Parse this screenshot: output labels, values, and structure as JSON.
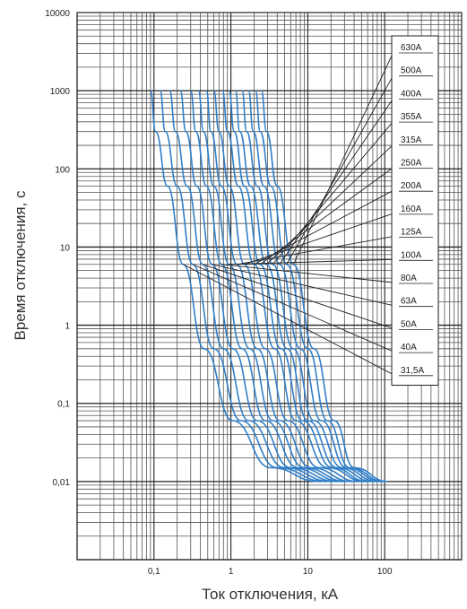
{
  "chart_data": {
    "type": "line",
    "xlabel": "Ток отключения, кА",
    "ylabel": "Время отключения, с",
    "xscale": "log",
    "yscale": "log",
    "xlim": [
      0.01,
      1000
    ],
    "ylim": [
      0.001,
      10000
    ],
    "grid": true,
    "legend_position": "right",
    "x_tick_labels": [
      {
        "value": 0.1,
        "label": "0,1"
      },
      {
        "value": 1,
        "label": "1"
      },
      {
        "value": 10,
        "label": "10"
      },
      {
        "value": 100,
        "label": "100"
      }
    ],
    "y_tick_labels": [
      {
        "value": 10000,
        "label": "10000"
      },
      {
        "value": 1000,
        "label": "1000"
      },
      {
        "value": 100,
        "label": "100"
      },
      {
        "value": 10,
        "label": "10"
      },
      {
        "value": 1,
        "label": "1"
      },
      {
        "value": 0.1,
        "label": "0,1"
      },
      {
        "value": 0.01,
        "label": "0,01"
      }
    ],
    "series_color": "#2f7ec8",
    "series": [
      {
        "name": "630A",
        "x": [
          2.5,
          2.9,
          4.0,
          6.5,
          12,
          22,
          40,
          110
        ],
        "y": [
          1000,
          300,
          60,
          6,
          0.5,
          0.06,
          0.015,
          0.01
        ]
      },
      {
        "name": "500A",
        "x": [
          2.1,
          2.4,
          3.3,
          5.3,
          10,
          18,
          35,
          100
        ],
        "y": [
          1000,
          300,
          60,
          6,
          0.5,
          0.06,
          0.015,
          0.01
        ]
      },
      {
        "name": "400A",
        "x": [
          1.7,
          1.95,
          2.7,
          4.3,
          8,
          15,
          32,
          90
        ],
        "y": [
          1000,
          300,
          60,
          6,
          0.5,
          0.06,
          0.015,
          0.01
        ]
      },
      {
        "name": "355A",
        "x": [
          1.4,
          1.6,
          2.2,
          3.5,
          6.5,
          12,
          28,
          80
        ],
        "y": [
          1000,
          300,
          60,
          6,
          0.5,
          0.06,
          0.015,
          0.01
        ]
      },
      {
        "name": "315A",
        "x": [
          1.15,
          1.3,
          1.8,
          2.9,
          5.4,
          10,
          24,
          70
        ],
        "y": [
          1000,
          300,
          60,
          6,
          0.5,
          0.06,
          0.015,
          0.01
        ]
      },
      {
        "name": "250A",
        "x": [
          0.95,
          1.1,
          1.5,
          2.4,
          4.5,
          8.5,
          21,
          60
        ],
        "y": [
          1000,
          300,
          60,
          6,
          0.5,
          0.06,
          0.015,
          0.01
        ]
      },
      {
        "name": "200A",
        "x": [
          0.78,
          0.9,
          1.25,
          2.0,
          3.7,
          7,
          18,
          55
        ],
        "y": [
          1000,
          300,
          60,
          6,
          0.5,
          0.06,
          0.015,
          0.01
        ]
      },
      {
        "name": "160A",
        "x": [
          0.6,
          0.7,
          0.95,
          1.5,
          2.8,
          5.5,
          14,
          45
        ],
        "y": [
          1000,
          300,
          60,
          6,
          0.5,
          0.06,
          0.015,
          0.01
        ]
      },
      {
        "name": "125A",
        "x": [
          0.48,
          0.55,
          0.75,
          1.2,
          2.2,
          4.3,
          11,
          38
        ],
        "y": [
          1000,
          300,
          60,
          6,
          0.5,
          0.06,
          0.015,
          0.01
        ]
      },
      {
        "name": "100A",
        "x": [
          0.38,
          0.44,
          0.6,
          0.95,
          1.75,
          3.5,
          9,
          32
        ],
        "y": [
          1000,
          300,
          60,
          6,
          0.5,
          0.06,
          0.015,
          0.01
        ]
      },
      {
        "name": "80A",
        "x": [
          0.3,
          0.35,
          0.48,
          0.76,
          1.4,
          2.8,
          7.5,
          28
        ],
        "y": [
          1000,
          300,
          60,
          6,
          0.5,
          0.06,
          0.015,
          0.01
        ]
      },
      {
        "name": "63A",
        "x": [
          0.22,
          0.26,
          0.36,
          0.57,
          1.06,
          2.2,
          6,
          24
        ],
        "y": [
          1000,
          300,
          60,
          6,
          0.5,
          0.06,
          0.015,
          0.01
        ]
      },
      {
        "name": "50A",
        "x": [
          0.16,
          0.19,
          0.27,
          0.43,
          0.8,
          1.7,
          5,
          20
        ],
        "y": [
          1000,
          300,
          60,
          6,
          0.5,
          0.06,
          0.015,
          0.01
        ]
      },
      {
        "name": "40A",
        "x": [
          0.12,
          0.14,
          0.2,
          0.32,
          0.6,
          1.35,
          4,
          17
        ],
        "y": [
          1000,
          300,
          60,
          6,
          0.5,
          0.06,
          0.015,
          0.01
        ]
      },
      {
        "name": "31,5A",
        "x": [
          0.09,
          0.105,
          0.15,
          0.24,
          0.45,
          1.05,
          3.3,
          14
        ],
        "y": [
          1000,
          300,
          60,
          6,
          0.5,
          0.06,
          0.015,
          0.01
        ]
      }
    ]
  }
}
